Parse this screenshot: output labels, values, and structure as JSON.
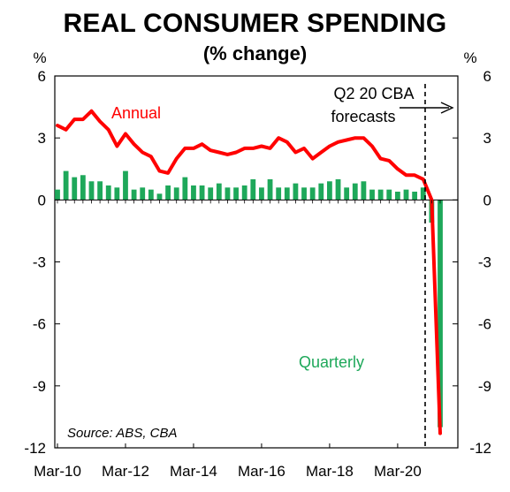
{
  "chart_data": {
    "type": "bar+line",
    "title": "REAL CONSUMER SPENDING",
    "subtitle": "(% change)",
    "y_unit_left": "%",
    "y_unit_right": "%",
    "ylim": [
      -12,
      6
    ],
    "y_ticks": [
      "6",
      "3",
      "0",
      "-3",
      "-6",
      "-9",
      "-12"
    ],
    "x_ticks": [
      "Mar-10",
      "Mar-12",
      "Mar-14",
      "Mar-16",
      "Mar-18",
      "Mar-20"
    ],
    "grid": false,
    "colors": {
      "annual": "#ff0000",
      "quarterly": "#1ea85a",
      "axis": "#000000"
    },
    "series": [
      {
        "name": "Annual",
        "type": "line",
        "values": [
          3.6,
          3.4,
          3.9,
          3.9,
          4.3,
          3.8,
          3.4,
          2.6,
          3.2,
          2.7,
          2.3,
          2.1,
          1.4,
          1.3,
          2.0,
          2.5,
          2.5,
          2.7,
          2.4,
          2.3,
          2.2,
          2.3,
          2.5,
          2.5,
          2.6,
          2.5,
          3.0,
          2.8,
          2.3,
          2.5,
          2.0,
          2.3,
          2.6,
          2.8,
          2.9,
          3.0,
          3.0,
          2.6,
          2.0,
          1.9,
          1.5,
          1.2,
          1.2,
          1.0,
          0.0,
          -11.3
        ]
      },
      {
        "name": "Quarterly",
        "type": "bar",
        "values": [
          0.5,
          1.4,
          1.1,
          1.2,
          0.9,
          0.9,
          0.7,
          0.6,
          1.4,
          0.5,
          0.6,
          0.5,
          0.3,
          0.7,
          0.6,
          1.1,
          0.7,
          0.7,
          0.6,
          0.8,
          0.6,
          0.6,
          0.7,
          1.0,
          0.6,
          1.0,
          0.6,
          0.6,
          0.8,
          0.6,
          0.6,
          0.8,
          0.9,
          1.0,
          0.6,
          0.8,
          0.9,
          0.5,
          0.5,
          0.5,
          0.4,
          0.5,
          0.4,
          0.6,
          -1.1,
          -11.0
        ]
      }
    ],
    "annotations": {
      "forecast_label_line1": "Q2 20 CBA",
      "forecast_label_line2": "forecasts",
      "source": "Source: ABS, CBA",
      "annual_label": "Annual",
      "quarterly_label": "Quarterly"
    }
  }
}
